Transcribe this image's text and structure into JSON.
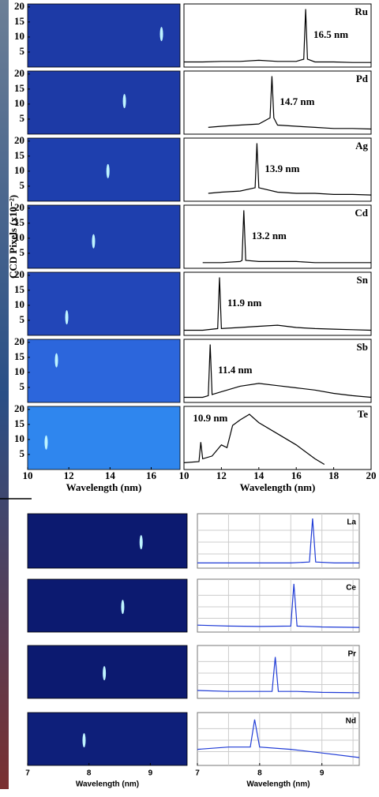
{
  "chart_data": [
    {
      "type": "spectra",
      "ylabel": "CCD Pixels (x10⁻²)",
      "xlabel": "Wavelength (nm)",
      "image_xlim": [
        10,
        17.4
      ],
      "image_xticks": [
        10,
        12,
        14,
        16
      ],
      "image_ylim": [
        0,
        21
      ],
      "image_yticks": [
        5,
        10,
        15,
        20
      ],
      "xlim": [
        10,
        20
      ],
      "xticks": [
        10,
        12,
        14,
        16,
        18,
        20
      ],
      "ylim": [
        0,
        1.05
      ],
      "line_color": "#000000",
      "grid": false,
      "panels": [
        {
          "name": "Ru",
          "peak": 16.5,
          "peak_label": "16.5 nm",
          "spot_pixel": 11,
          "image_color": "#1d3aa6",
          "x": [
            10,
            11,
            12,
            13,
            14,
            15,
            16,
            16.4,
            16.5,
            16.6,
            17,
            18,
            19,
            20
          ],
          "values": [
            0.05,
            0.05,
            0.06,
            0.06,
            0.08,
            0.06,
            0.06,
            0.1,
            1,
            0.1,
            0.05,
            0.05,
            0.04,
            0.04
          ]
        },
        {
          "name": "Pd",
          "peak": 14.7,
          "peak_label": "14.7 nm",
          "spot_pixel": 11,
          "image_color": "#1d3aa6",
          "x": [
            11.3,
            12,
            13,
            14,
            14.6,
            14.7,
            14.8,
            15,
            16,
            17,
            18,
            19,
            20
          ],
          "values": [
            0.08,
            0.1,
            0.12,
            0.14,
            0.25,
            1,
            0.25,
            0.12,
            0.1,
            0.08,
            0.06,
            0.06,
            0.05
          ]
        },
        {
          "name": "Ag",
          "peak": 13.9,
          "peak_label": "13.9 nm",
          "spot_pixel": 10,
          "image_color": "#1e3fae",
          "x": [
            11.3,
            12,
            13,
            13.8,
            13.9,
            14,
            15,
            16,
            17,
            18,
            19,
            20
          ],
          "values": [
            0.1,
            0.12,
            0.14,
            0.2,
            1,
            0.2,
            0.12,
            0.1,
            0.1,
            0.08,
            0.08,
            0.07
          ]
        },
        {
          "name": "Cd",
          "peak": 13.2,
          "peak_label": "13.2 nm",
          "spot_pixel": 9,
          "image_color": "#1e3fae",
          "x": [
            11,
            12,
            13,
            13.1,
            13.2,
            13.3,
            14,
            15,
            16,
            17,
            18,
            19,
            20
          ],
          "values": [
            0.06,
            0.06,
            0.08,
            0.1,
            1,
            0.1,
            0.08,
            0.08,
            0.08,
            0.06,
            0.06,
            0.06,
            0.06
          ]
        },
        {
          "name": "Sn",
          "peak": 11.9,
          "peak_label": "11.9 nm",
          "spot_pixel": 6,
          "image_color": "#2246b8",
          "x": [
            10,
            11,
            11.8,
            11.9,
            12,
            13,
            14,
            15,
            16,
            17,
            18,
            19,
            20
          ],
          "values": [
            0.05,
            0.05,
            0.08,
            1,
            0.08,
            0.1,
            0.12,
            0.14,
            0.1,
            0.08,
            0.07,
            0.06,
            0.05
          ]
        },
        {
          "name": "Sb",
          "peak": 11.4,
          "peak_label": "11.4 nm",
          "spot_pixel": 14,
          "image_color": "#2c66dc",
          "x": [
            10,
            11,
            11.3,
            11.4,
            11.5,
            12,
            13,
            14,
            15,
            16,
            17,
            18,
            19,
            20
          ],
          "values": [
            0.05,
            0.05,
            0.08,
            1,
            0.1,
            0.15,
            0.25,
            0.3,
            0.26,
            0.22,
            0.18,
            0.12,
            0.08,
            0.05
          ]
        },
        {
          "name": "Te",
          "peak": 10.9,
          "peak_label": "10.9 nm",
          "spot_pixel": 9,
          "image_color": "#2f86ee",
          "x": [
            10,
            10.8,
            10.9,
            11,
            11.5,
            12,
            12.3,
            12.6,
            13,
            13.5,
            14,
            15,
            16,
            17,
            17.5
          ],
          "values": [
            0.08,
            0.1,
            0.45,
            0.15,
            0.2,
            0.4,
            0.35,
            0.75,
            0.85,
            0.95,
            0.8,
            0.6,
            0.4,
            0.15,
            0.05
          ]
        }
      ]
    },
    {
      "type": "spectra",
      "xlabel": "Wavelength (nm)",
      "image_xlim": [
        7,
        9.6
      ],
      "image_xticks": [
        7,
        8,
        9
      ],
      "image_ylim": [
        0,
        21
      ],
      "xlim": [
        7,
        9.6
      ],
      "xticks": [
        7,
        8,
        9
      ],
      "ylim": [
        0,
        1.05
      ],
      "line_color": "#1f3bd6",
      "grid": true,
      "xgrid": [
        7.5,
        8,
        8.5,
        9,
        9.5
      ],
      "ygrid": [
        0.25,
        0.5,
        0.75
      ],
      "panels": [
        {
          "name": "La",
          "peak": 8.85,
          "spot_pixel": 10,
          "image_color": "#0c1a70",
          "x": [
            7,
            7.5,
            8,
            8.5,
            8.8,
            8.85,
            8.9,
            9.2,
            9.6
          ],
          "values": [
            0.06,
            0.06,
            0.06,
            0.06,
            0.08,
            1,
            0.08,
            0.06,
            0.06
          ]
        },
        {
          "name": "Ce",
          "peak": 8.55,
          "spot_pixel": 10,
          "image_color": "#0c1a70",
          "x": [
            7,
            7.5,
            8,
            8.5,
            8.55,
            8.6,
            9,
            9.6
          ],
          "values": [
            0.1,
            0.08,
            0.07,
            0.08,
            1,
            0.08,
            0.06,
            0.05
          ]
        },
        {
          "name": "Pr",
          "peak": 8.25,
          "spot_pixel": 10,
          "image_color": "#0c1a70",
          "x": [
            7,
            7.5,
            8,
            8.2,
            8.25,
            8.3,
            8.6,
            9,
            9.6
          ],
          "values": [
            0.12,
            0.1,
            0.1,
            0.1,
            0.85,
            0.1,
            0.1,
            0.08,
            0.07
          ]
        },
        {
          "name": "Nd",
          "peak": 7.92,
          "spot_pixel": 10,
          "image_color": "#0e1f7a",
          "x": [
            7,
            7.5,
            7.85,
            7.92,
            8,
            8.5,
            9,
            9.6
          ],
          "values": [
            0.3,
            0.35,
            0.35,
            0.95,
            0.35,
            0.3,
            0.22,
            0.12
          ]
        }
      ]
    }
  ]
}
